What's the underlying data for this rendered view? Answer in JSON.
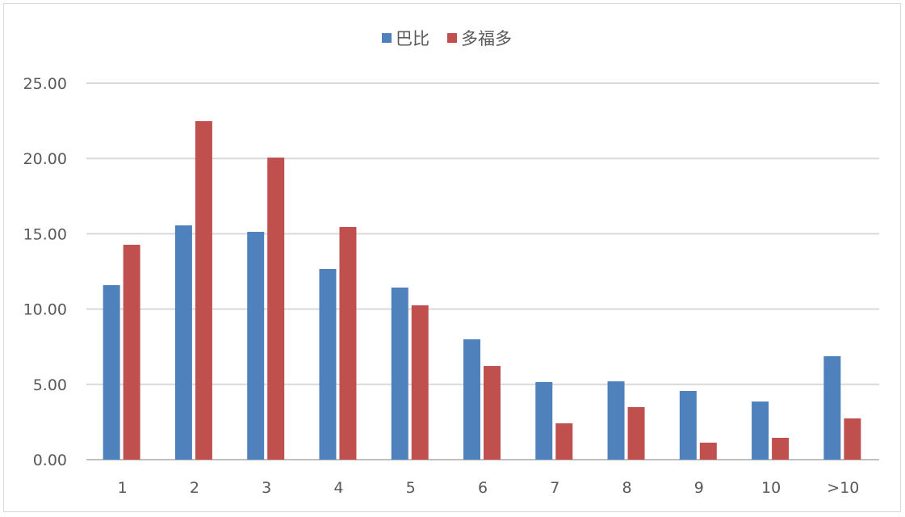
{
  "chart_data": {
    "type": "bar",
    "title": "",
    "xlabel": "",
    "ylabel": "",
    "categories": [
      "1",
      "2",
      "3",
      "4",
      "5",
      "6",
      "7",
      "8",
      "9",
      "10",
      ">10"
    ],
    "series": [
      {
        "name": "巴比",
        "color": "#4f81bd",
        "values": [
          11.59,
          15.56,
          15.13,
          12.66,
          11.43,
          7.99,
          5.15,
          5.2,
          4.56,
          3.86,
          6.87
        ]
      },
      {
        "name": "多福多",
        "color": "#c0504d",
        "values": [
          14.27,
          22.48,
          20.06,
          15.45,
          10.25,
          6.22,
          2.41,
          3.49,
          1.13,
          1.45,
          2.74
        ]
      }
    ],
    "ylim": [
      0,
      25
    ],
    "yticks": [
      "0.00",
      "5.00",
      "10.00",
      "15.00",
      "20.00",
      "25.00"
    ],
    "grid": true,
    "legend": "top-center"
  }
}
